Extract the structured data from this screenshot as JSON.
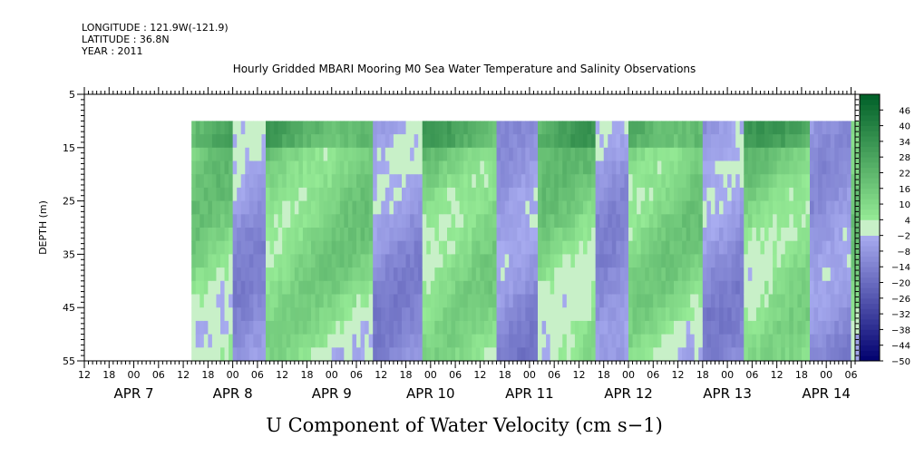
{
  "header": {
    "longitude": "LONGITUDE : 121.9W(-121.9)",
    "latitude": "LATITUDE : 36.8N",
    "year": "YEAR : 2011"
  },
  "chart_data": {
    "type": "heatmap",
    "title": "Hourly Gridded MBARI Mooring M0 Sea Water Temperature and Salinity Observations",
    "xlabel": "U Component of Water Velocity (cm s−1)",
    "ylabel": "DEPTH (m)",
    "y_ticks": [
      5,
      15,
      25,
      35,
      45,
      55
    ],
    "ylim": [
      5,
      55
    ],
    "y_reversed": true,
    "data_depth_range": [
      10,
      55
    ],
    "x_hour_ticks": [
      "12",
      "18",
      "00",
      "06",
      "12",
      "18",
      "00",
      "06",
      "12",
      "18",
      "00",
      "06",
      "12",
      "18",
      "00",
      "06",
      "12",
      "18",
      "00",
      "06",
      "12",
      "18",
      "00",
      "06",
      "12",
      "18",
      "00",
      "06",
      "12",
      "18",
      "00",
      "06"
    ],
    "x_start": "2011-04-06 12:00",
    "x_hours_shown": 187,
    "data_time_range": [
      "2011-04-07 14:00",
      "2011-04-14 10:00"
    ],
    "date_labels": [
      {
        "label": "APR  7",
        "at": "2011-04-07 00:00"
      },
      {
        "label": "APR  8",
        "at": "2011-04-08 00:00"
      },
      {
        "label": "APR  9",
        "at": "2011-04-09 00:00"
      },
      {
        "label": "APR 10",
        "at": "2011-04-10 00:00"
      },
      {
        "label": "APR 11",
        "at": "2011-04-11 00:00"
      },
      {
        "label": "APR 12",
        "at": "2011-04-12 00:00"
      },
      {
        "label": "APR 13",
        "at": "2011-04-13 00:00"
      },
      {
        "label": "APR 14",
        "at": "2011-04-14 00:00"
      }
    ],
    "colorbar_levels": [
      "46",
      "40",
      "34",
      "28",
      "22",
      "16",
      "10",
      "4",
      "−2",
      "−8",
      "−14",
      "−20",
      "−26",
      "−32",
      "−38",
      "−44",
      "−50"
    ],
    "colorbar_range": [
      -50,
      52
    ],
    "colormap": "blue (negative) to green (positive)",
    "approx_column_profile_hours_from_0406_12": {
      "note": "dominant sign of U near-surface / at depth, estimated",
      "positive_bands_hours": [
        [
          26,
          36
        ],
        [
          44,
          70
        ],
        [
          82,
          100
        ],
        [
          110,
          124
        ],
        [
          132,
          150
        ],
        [
          160,
          176
        ]
      ],
      "negative_bands_hours": [
        [
          36,
          44
        ],
        [
          70,
          82
        ],
        [
          100,
          110
        ],
        [
          124,
          132
        ],
        [
          150,
          160
        ],
        [
          176,
          186
        ]
      ]
    }
  }
}
